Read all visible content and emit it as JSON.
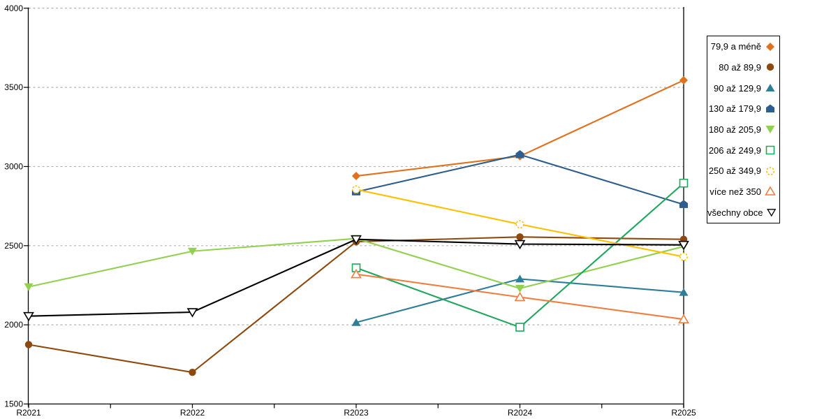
{
  "chart_data": {
    "type": "line",
    "title": "",
    "categories": [
      "R2021",
      "R2022",
      "R2023",
      "R2024",
      "R2025"
    ],
    "xlabel": "",
    "ylabel": "",
    "ylim": [
      1500,
      4000
    ],
    "y_tick_step": 500,
    "y_tick_labels": [
      "1500",
      "2000",
      "2500",
      "3000",
      "3500",
      "4000"
    ],
    "grid": "horizontal-dashed",
    "legend_position": "top-right",
    "gridline_color": "#b3b3b3",
    "axis_color": "#000000",
    "series": [
      {
        "name": "79,9 a méně",
        "icon": "orange-diamond-filled-icon",
        "marker": "diamond",
        "filled": true,
        "dashed_marker": false,
        "color": "#E2711D",
        "values": [
          null,
          null,
          2940,
          3065,
          3545
        ]
      },
      {
        "name": "80 až 89,9",
        "icon": "brown-circle-filled-icon",
        "marker": "circle",
        "filled": true,
        "dashed_marker": false,
        "color": "#8E4A0E",
        "values": [
          1875,
          1700,
          2525,
          2555,
          2540
        ]
      },
      {
        "name": "90 až 129,9",
        "icon": "teal-triangle-up-filled-icon",
        "marker": "triangle-up",
        "filled": true,
        "dashed_marker": false,
        "color": "#2E7E99",
        "values": [
          null,
          null,
          2015,
          2290,
          2205
        ]
      },
      {
        "name": "130 až 179,9",
        "icon": "blue-pentagon-filled-icon",
        "marker": "pentagon",
        "filled": true,
        "dashed_marker": false,
        "color": "#2D5E8E",
        "values": [
          null,
          null,
          2840,
          3075,
          2760
        ]
      },
      {
        "name": "180 až 205,9",
        "icon": "green-triangle-down-filled-icon",
        "marker": "triangle-down",
        "filled": true,
        "dashed_marker": false,
        "color": "#92D04F",
        "values": [
          2240,
          2465,
          2545,
          2230,
          2495
        ]
      },
      {
        "name": "206 až 249,9",
        "icon": "green-square-open-icon",
        "marker": "square",
        "filled": false,
        "dashed_marker": false,
        "color": "#1FA75D",
        "values": [
          null,
          null,
          2360,
          1985,
          2895
        ]
      },
      {
        "name": "250 až 349,9",
        "icon": "yellow-circle-open-icon",
        "marker": "circle",
        "filled": false,
        "dashed_marker": true,
        "color": "#FFC000",
        "values": [
          null,
          null,
          2855,
          2635,
          2430
        ]
      },
      {
        "name": "více než 350",
        "icon": "orange-triangle-up-open-icon",
        "marker": "triangle-up",
        "filled": false,
        "dashed_marker": false,
        "color": "#F07E3E",
        "values": [
          null,
          null,
          2320,
          2175,
          2035
        ]
      },
      {
        "name": "všechny obce",
        "icon": "black-triangle-down-open-icon",
        "marker": "triangle-down",
        "filled": false,
        "dashed_marker": false,
        "color": "#000000",
        "values": [
          2055,
          2080,
          2540,
          2510,
          2505
        ]
      }
    ]
  }
}
